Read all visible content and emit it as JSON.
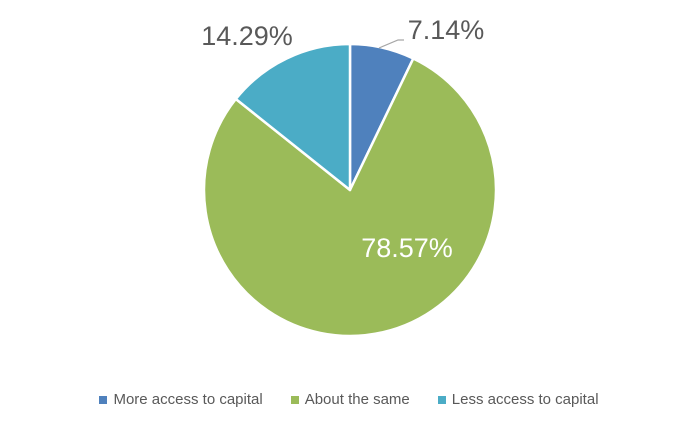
{
  "chart_data": {
    "type": "pie",
    "title": "",
    "categories": [
      "More access to capital",
      "About the same",
      "Less access to capital"
    ],
    "values": [
      7.14,
      78.57,
      14.29
    ],
    "labels": [
      "7.14%",
      "78.57%",
      "14.29%"
    ],
    "colors": [
      "#4F81BD",
      "#9BBB59",
      "#4BACC6"
    ],
    "label_colors": [
      "#595959",
      "#FFFFFF",
      "#595959"
    ],
    "legend_position": "bottom"
  }
}
